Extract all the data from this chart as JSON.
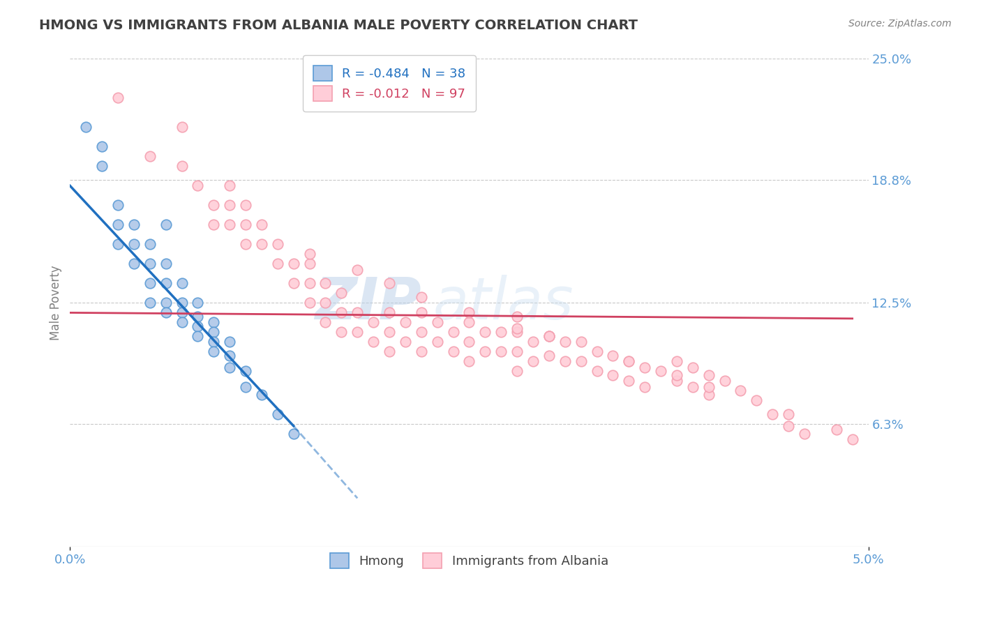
{
  "title": "HMONG VS IMMIGRANTS FROM ALBANIA MALE POVERTY CORRELATION CHART",
  "source": "Source: ZipAtlas.com",
  "ylabel": "Male Poverty",
  "x_min": 0.0,
  "x_max": 0.05,
  "y_min": 0.0,
  "y_max": 0.25,
  "x_ticks": [
    0.0,
    0.05
  ],
  "x_tick_labels": [
    "0.0%",
    "5.0%"
  ],
  "y_ticks": [
    0.0,
    0.063,
    0.125,
    0.188,
    0.25
  ],
  "y_tick_labels": [
    "",
    "6.3%",
    "12.5%",
    "18.8%",
    "25.0%"
  ],
  "legend_labels": [
    "Hmong",
    "Immigrants from Albania"
  ],
  "hmong_color": "#aec7e8",
  "albania_color": "#ffcdd8",
  "hmong_edge_color": "#5b9bd5",
  "albania_edge_color": "#f4a0b0",
  "trend_hmong_color": "#2070c0",
  "trend_albania_color": "#d04060",
  "R_hmong": -0.484,
  "N_hmong": 38,
  "R_albania": -0.012,
  "N_albania": 97,
  "watermark_zip": "ZIP",
  "watermark_atlas": "atlas",
  "background_color": "#ffffff",
  "grid_color": "#c8c8c8",
  "title_color": "#404040",
  "axis_label_color": "#5b9bd5",
  "hmong_x": [
    0.001,
    0.002,
    0.002,
    0.003,
    0.003,
    0.003,
    0.004,
    0.004,
    0.004,
    0.005,
    0.005,
    0.005,
    0.005,
    0.006,
    0.006,
    0.006,
    0.006,
    0.006,
    0.007,
    0.007,
    0.007,
    0.007,
    0.008,
    0.008,
    0.008,
    0.008,
    0.009,
    0.009,
    0.009,
    0.009,
    0.01,
    0.01,
    0.01,
    0.011,
    0.011,
    0.012,
    0.013,
    0.014
  ],
  "hmong_y": [
    0.215,
    0.205,
    0.195,
    0.175,
    0.165,
    0.155,
    0.165,
    0.155,
    0.145,
    0.155,
    0.145,
    0.135,
    0.125,
    0.165,
    0.145,
    0.135,
    0.125,
    0.12,
    0.135,
    0.125,
    0.12,
    0.115,
    0.125,
    0.118,
    0.113,
    0.108,
    0.115,
    0.11,
    0.105,
    0.1,
    0.105,
    0.098,
    0.092,
    0.09,
    0.082,
    0.078,
    0.068,
    0.058
  ],
  "albania_x": [
    0.003,
    0.005,
    0.007,
    0.007,
    0.008,
    0.009,
    0.009,
    0.01,
    0.01,
    0.01,
    0.011,
    0.011,
    0.011,
    0.012,
    0.012,
    0.013,
    0.013,
    0.014,
    0.014,
    0.015,
    0.015,
    0.015,
    0.016,
    0.016,
    0.016,
    0.017,
    0.017,
    0.017,
    0.018,
    0.018,
    0.019,
    0.019,
    0.02,
    0.02,
    0.02,
    0.021,
    0.021,
    0.022,
    0.022,
    0.022,
    0.023,
    0.023,
    0.024,
    0.024,
    0.025,
    0.025,
    0.025,
    0.026,
    0.026,
    0.027,
    0.027,
    0.028,
    0.028,
    0.028,
    0.029,
    0.029,
    0.03,
    0.03,
    0.031,
    0.031,
    0.032,
    0.032,
    0.033,
    0.033,
    0.034,
    0.034,
    0.035,
    0.035,
    0.036,
    0.036,
    0.037,
    0.038,
    0.038,
    0.039,
    0.039,
    0.04,
    0.04,
    0.041,
    0.042,
    0.043,
    0.044,
    0.045,
    0.046,
    0.02,
    0.022,
    0.025,
    0.028,
    0.03,
    0.035,
    0.038,
    0.04,
    0.015,
    0.018,
    0.028,
    0.03,
    0.045,
    0.048,
    0.049
  ],
  "albania_y": [
    0.23,
    0.2,
    0.215,
    0.195,
    0.185,
    0.175,
    0.165,
    0.185,
    0.175,
    0.165,
    0.175,
    0.165,
    0.155,
    0.165,
    0.155,
    0.155,
    0.145,
    0.145,
    0.135,
    0.145,
    0.135,
    0.125,
    0.135,
    0.125,
    0.115,
    0.13,
    0.12,
    0.11,
    0.12,
    0.11,
    0.115,
    0.105,
    0.12,
    0.11,
    0.1,
    0.115,
    0.105,
    0.12,
    0.11,
    0.1,
    0.115,
    0.105,
    0.11,
    0.1,
    0.115,
    0.105,
    0.095,
    0.11,
    0.1,
    0.11,
    0.1,
    0.11,
    0.1,
    0.09,
    0.105,
    0.095,
    0.108,
    0.098,
    0.105,
    0.095,
    0.105,
    0.095,
    0.1,
    0.09,
    0.098,
    0.088,
    0.095,
    0.085,
    0.092,
    0.082,
    0.09,
    0.095,
    0.085,
    0.092,
    0.082,
    0.088,
    0.078,
    0.085,
    0.08,
    0.075,
    0.068,
    0.062,
    0.058,
    0.135,
    0.128,
    0.12,
    0.112,
    0.108,
    0.095,
    0.088,
    0.082,
    0.15,
    0.142,
    0.118,
    0.108,
    0.068,
    0.06,
    0.055
  ],
  "trend_hmong_x0": 0.0,
  "trend_hmong_y0": 0.185,
  "trend_hmong_x1": 0.014,
  "trend_hmong_y1": 0.062,
  "trend_hmong_dash_x1": 0.018,
  "trend_hmong_dash_y1": 0.025,
  "trend_albania_x0": 0.0,
  "trend_albania_y0": 0.12,
  "trend_albania_x1": 0.049,
  "trend_albania_y1": 0.117
}
